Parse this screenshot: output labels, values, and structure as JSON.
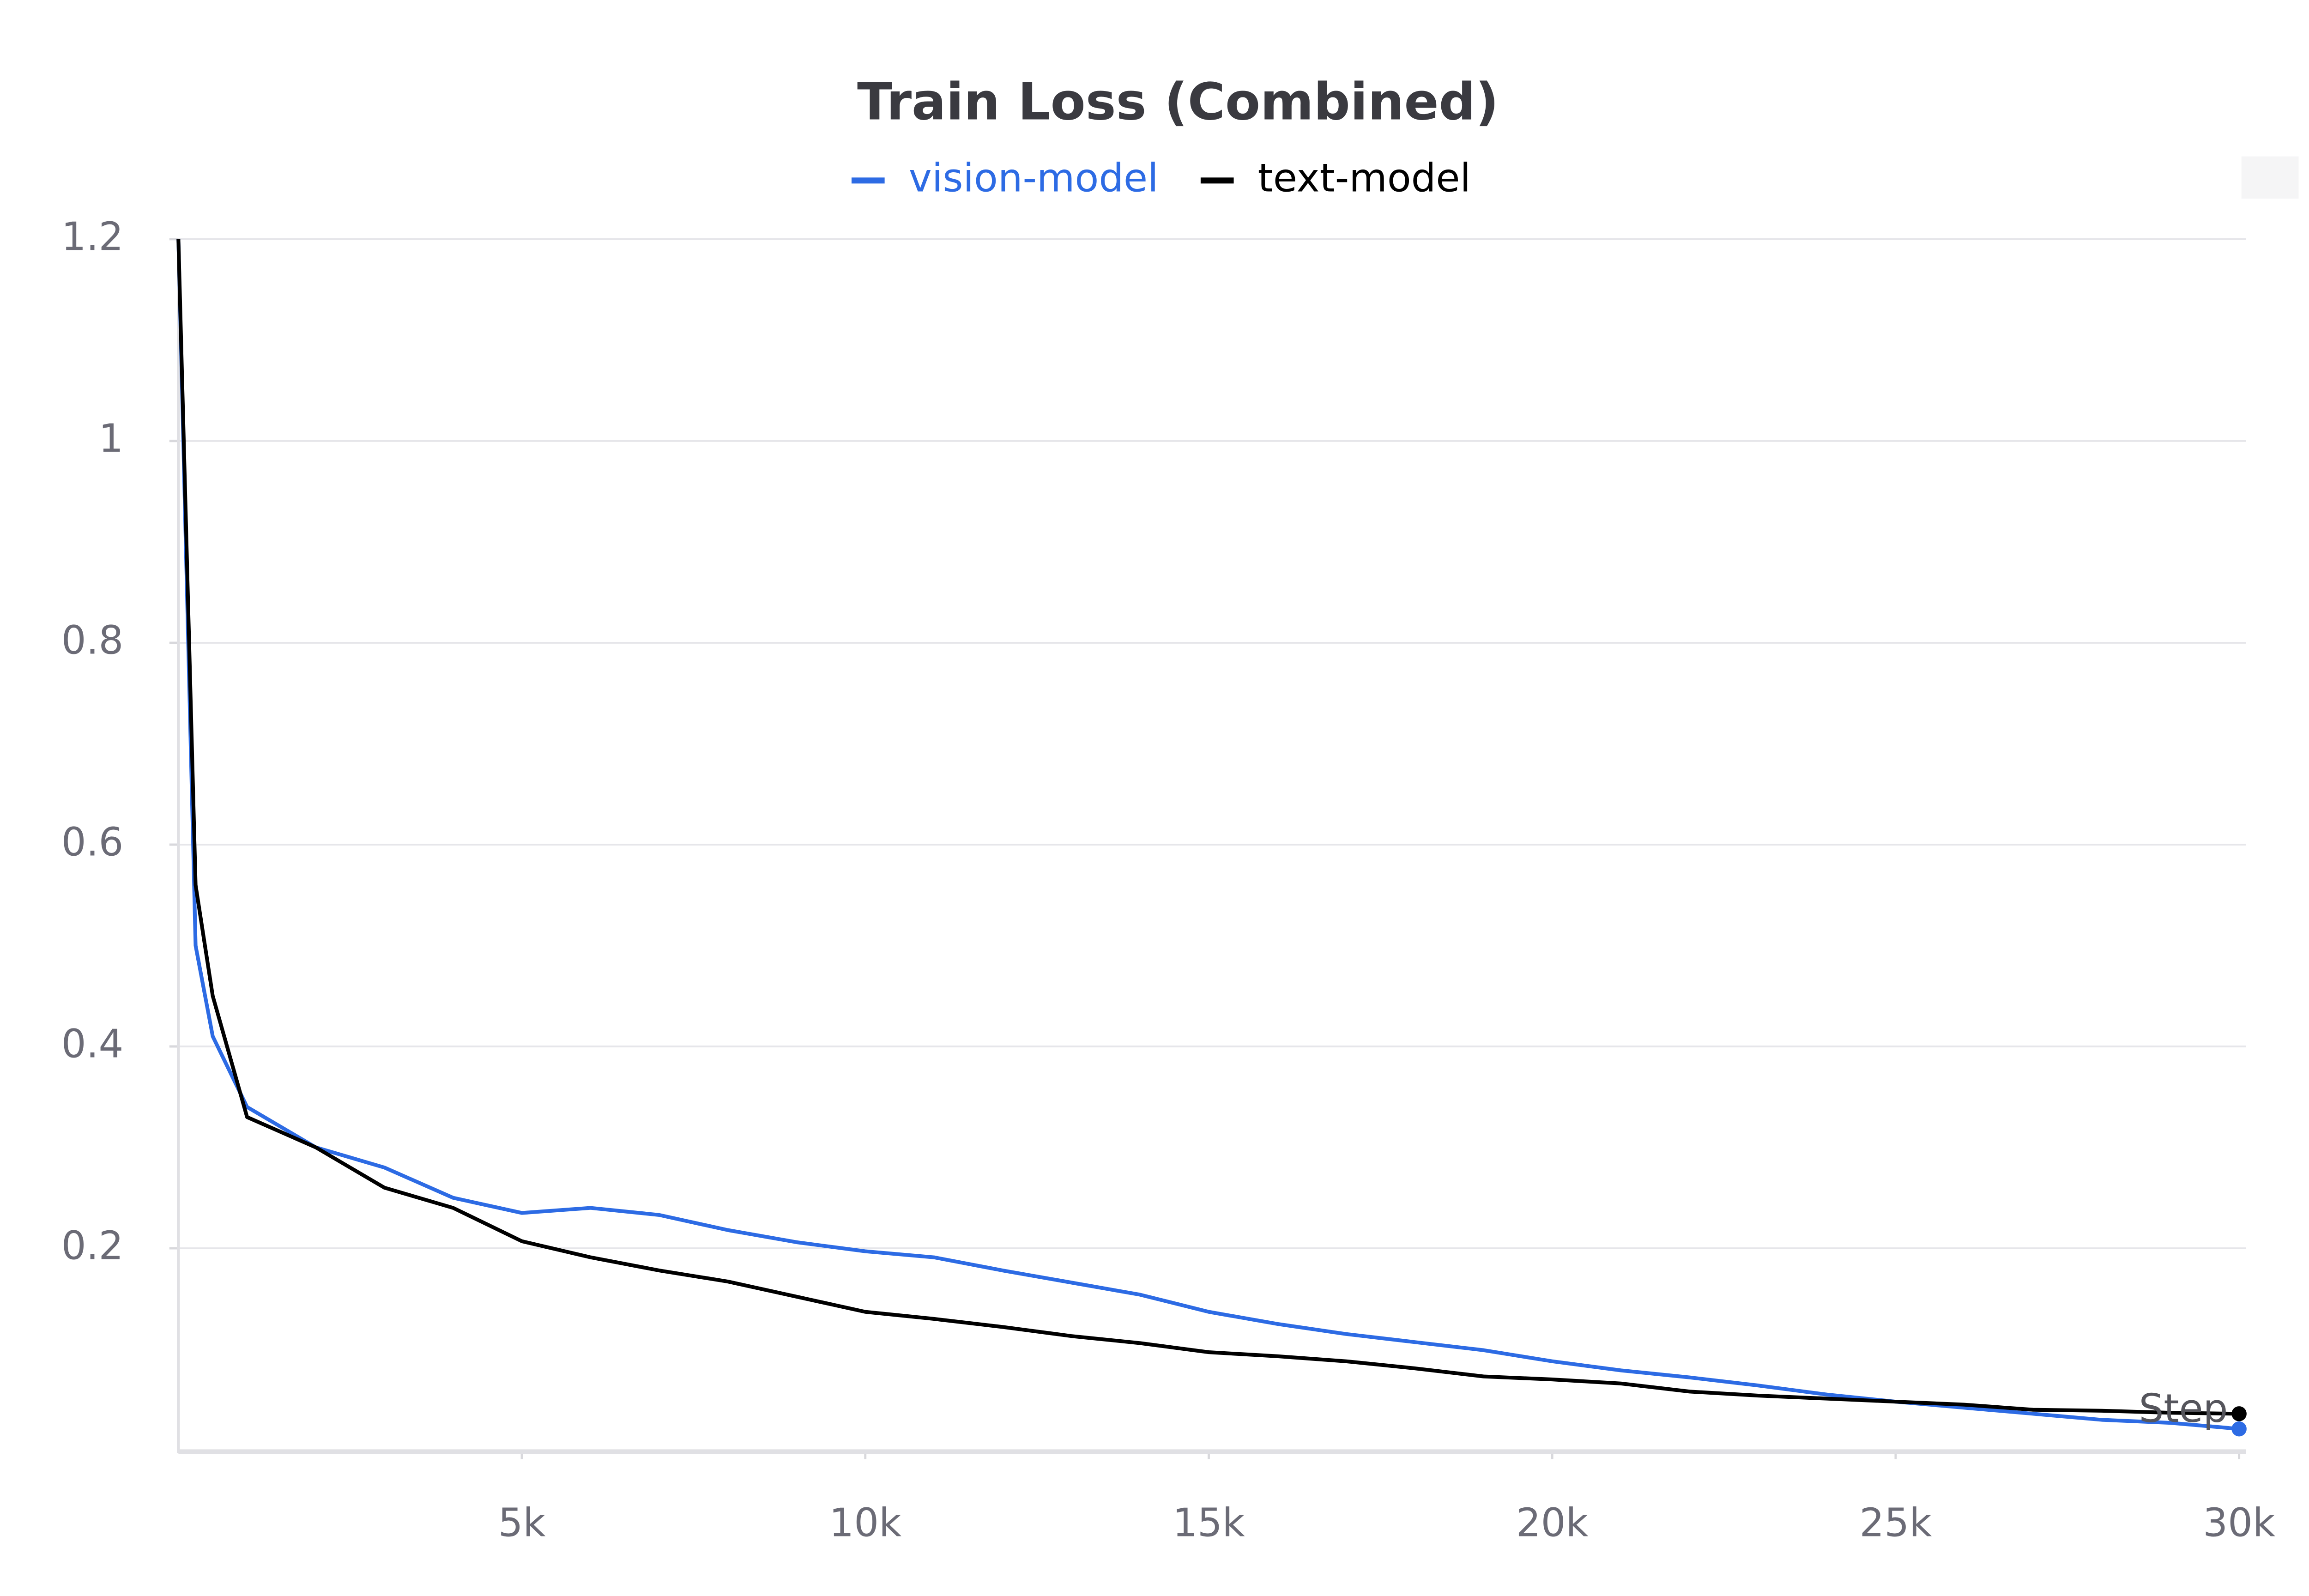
{
  "chart_data": {
    "type": "line",
    "title": "Train Loss (Combined)",
    "x_label": "Step",
    "x": [
      0,
      250,
      500,
      1000,
      2000,
      3000,
      4000,
      5000,
      6000,
      7000,
      8000,
      9000,
      10000,
      11000,
      12000,
      13000,
      14000,
      15000,
      16000,
      17000,
      18000,
      19000,
      20000,
      21000,
      22000,
      23000,
      24000,
      25000,
      26000,
      27000,
      28000,
      29000,
      30000
    ],
    "series": [
      {
        "name": "vision-model",
        "color": "#2d6be4",
        "values": [
          1.2,
          0.5,
          0.41,
          0.34,
          0.3,
          0.28,
          0.25,
          0.235,
          0.24,
          0.233,
          0.218,
          0.206,
          0.197,
          0.191,
          0.178,
          0.166,
          0.154,
          0.137,
          0.125,
          0.115,
          0.107,
          0.099,
          0.088,
          0.079,
          0.072,
          0.064,
          0.055,
          0.048,
          0.042,
          0.036,
          0.03,
          0.027,
          0.021
        ]
      },
      {
        "name": "text-model",
        "color": "#000000",
        "values": [
          1.2,
          0.56,
          0.45,
          0.33,
          0.3,
          0.26,
          0.24,
          0.207,
          0.191,
          0.178,
          0.167,
          0.152,
          0.137,
          0.13,
          0.122,
          0.113,
          0.106,
          0.097,
          0.093,
          0.088,
          0.081,
          0.073,
          0.07,
          0.066,
          0.058,
          0.054,
          0.051,
          0.048,
          0.045,
          0.04,
          0.039,
          0.037,
          0.036
        ]
      }
    ],
    "xlim": [
      0,
      30100
    ],
    "ylim": [
      0,
      1.2
    ],
    "xticks": [
      {
        "value": 5000,
        "label": "5k"
      },
      {
        "value": 10000,
        "label": "10k"
      },
      {
        "value": 15000,
        "label": "15k"
      },
      {
        "value": 20000,
        "label": "20k"
      },
      {
        "value": 25000,
        "label": "25k"
      },
      {
        "value": 30000,
        "label": "30k"
      }
    ],
    "yticks": [
      0.2,
      0.4,
      0.6,
      0.8,
      1,
      1.2
    ],
    "grid": true,
    "legend": "top"
  }
}
